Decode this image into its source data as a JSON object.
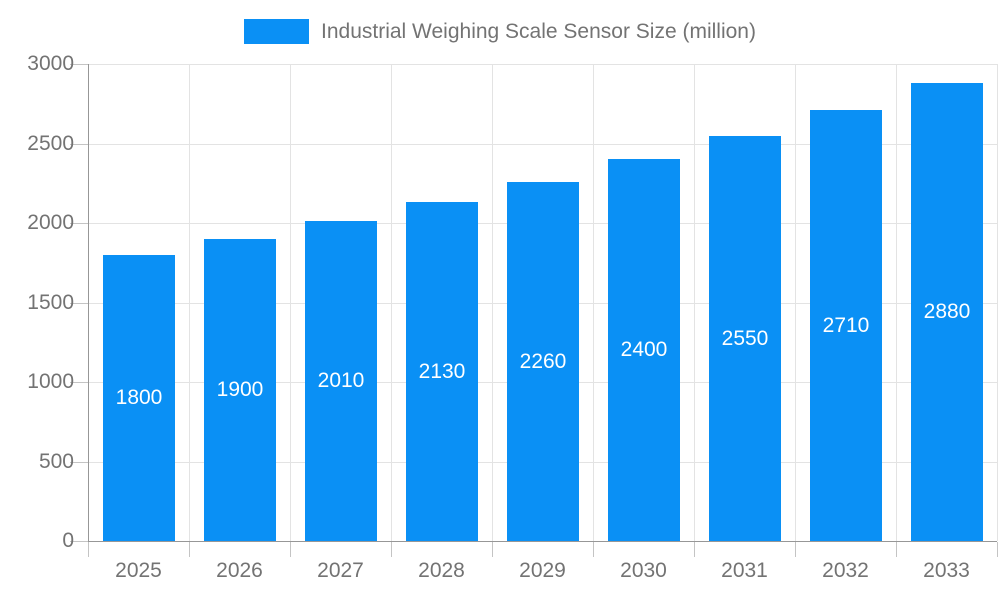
{
  "chart_data": {
    "type": "bar",
    "title": "Industrial Weighing Scale Sensor Size (million)",
    "categories": [
      "2025",
      "2026",
      "2027",
      "2028",
      "2029",
      "2030",
      "2031",
      "2032",
      "2033"
    ],
    "values": [
      1800,
      1900,
      2010,
      2130,
      2260,
      2400,
      2550,
      2710,
      2880
    ],
    "series": [
      {
        "name": "Industrial Weighing Scale Sensor Size (million)",
        "values": [
          1800,
          1900,
          2010,
          2130,
          2260,
          2400,
          2550,
          2710,
          2880
        ]
      }
    ],
    "xlabel": "",
    "ylabel": "",
    "ylim": [
      0,
      3000
    ],
    "yticks": [
      0,
      500,
      1000,
      1500,
      2000,
      2500,
      3000
    ],
    "grid": "on",
    "legend_position": "top-center",
    "bar_value_labels": "inside-center"
  },
  "colors": {
    "bar": "#0a90f5",
    "bar_label_text": "#ffffff",
    "axis_line": "#979797",
    "gridline": "#e3e3e3",
    "tick": "#c4c4c4",
    "label_text": "#737373",
    "background": "#ffffff"
  }
}
